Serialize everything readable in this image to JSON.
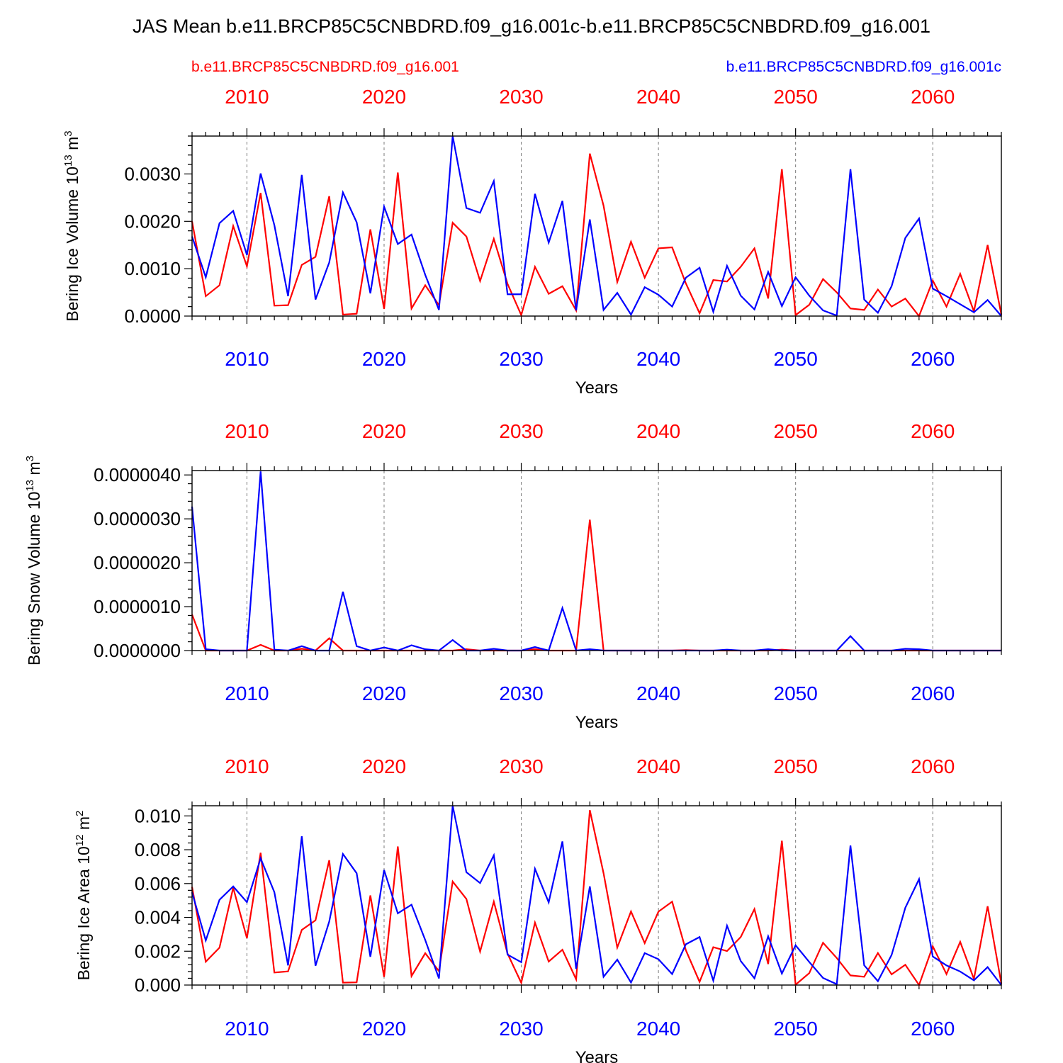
{
  "figure_title": "JAS Mean b.e11.BRCP85C5CNBDRD.f09_g16.001c-b.e11.BRCP85C5CNBDRD.f09_g16.001",
  "legend": {
    "red_label": "b.e11.BRCP85C5CNBDRD.f09_g16.001",
    "blue_label": "b.e11.BRCP85C5CNBDRD.f09_g16.001c"
  },
  "colors": {
    "red": "#ff0000",
    "blue": "#0000ff"
  },
  "chart_data": [
    {
      "type": "line",
      "ylabel": "Bering Ice Volume 10",
      "ylabel_exp": "13",
      "ylabel_unit": "m",
      "ylabel_unit_exp": "3",
      "xlabel": "Years",
      "xlim": [
        2006,
        2065
      ],
      "ylim": [
        0.0,
        0.0038
      ],
      "yticks": [
        "0.0000",
        "0.0010",
        "0.0020",
        "0.0030"
      ],
      "ytick_values": [
        0.0,
        0.001,
        0.002,
        0.003
      ],
      "xticks_top": [
        "2010",
        "2020",
        "2030",
        "2040",
        "2050",
        "2060"
      ],
      "xticks_bottom": [
        "2010",
        "2020",
        "2030",
        "2040",
        "2050",
        "2060"
      ],
      "xtick_values": [
        2010,
        2020,
        2030,
        2040,
        2050,
        2060
      ],
      "grid": "dashed vertical at decades",
      "series": [
        {
          "name": "b.e11.BRCP85C5CNBDRD.f09_g16.001",
          "color": "red",
          "values": [
            0.002,
            0.00042,
            0.00065,
            0.0019,
            0.00105,
            0.0026,
            0.00022,
            0.00023,
            0.00108,
            0.00125,
            0.00253,
            3e-05,
            5e-05,
            0.00183,
            0.00015,
            0.00303,
            0.00016,
            0.00065,
            0.00023,
            0.00197,
            0.00168,
            0.00074,
            0.00163,
            0.00068,
            2e-05,
            0.00104,
            0.00047,
            0.00063,
            0.00012,
            0.00343,
            0.00233,
            0.00072,
            0.00157,
            0.00081,
            0.00143,
            0.00145,
            0.00069,
            6e-05,
            0.00076,
            0.00073,
            0.00104,
            0.00143,
            0.00037,
            0.0031,
            2e-05,
            0.00024,
            0.00078,
            0.0005,
            0.00016,
            0.00013,
            0.00056,
            0.0002,
            0.00037,
            0.0,
            0.00075,
            0.0002,
            0.00089,
            0.0001,
            0.0015,
            3e-05
          ]
        },
        {
          "name": "b.e11.BRCP85C5CNBDRD.f09_g16.001c",
          "color": "blue",
          "values": [
            0.00168,
            0.00082,
            0.00196,
            0.00222,
            0.00129,
            0.00301,
            0.00192,
            0.00042,
            0.00298,
            0.00035,
            0.00113,
            0.00261,
            0.00198,
            0.00048,
            0.00231,
            0.00152,
            0.00172,
            0.00087,
            0.00013,
            0.0038,
            0.00228,
            0.00218,
            0.00285,
            0.00046,
            0.00046,
            0.00258,
            0.00155,
            0.00243,
            0.00012,
            0.00204,
            0.00013,
            0.00049,
            3e-05,
            0.00061,
            0.00045,
            0.0002,
            0.00081,
            0.00102,
            9e-05,
            0.00106,
            0.00043,
            0.00014,
            0.00093,
            0.00021,
            0.00082,
            0.00043,
            0.00012,
            1e-05,
            0.0031,
            0.00035,
            7e-05,
            0.00063,
            0.00165,
            0.00206,
            0.00058,
            0.00042,
            0.00025,
            8e-05,
            0.00034,
            0.0
          ]
        }
      ]
    },
    {
      "type": "line",
      "ylabel": "Bering Snow Volume 10",
      "ylabel_exp": "13",
      "ylabel_unit": "m",
      "ylabel_unit_exp": "3",
      "xlabel": "Years",
      "xlim": [
        2006,
        2065
      ],
      "ylim": [
        0.0,
        4.1e-06
      ],
      "yticks": [
        "0.0000000",
        "0.0000010",
        "0.0000020",
        "0.0000030",
        "0.0000040"
      ],
      "ytick_values": [
        0.0,
        1e-06,
        2e-06,
        3e-06,
        4e-06
      ],
      "xticks_top": [
        "2010",
        "2020",
        "2030",
        "2040",
        "2050",
        "2060"
      ],
      "xticks_bottom": [
        "2010",
        "2020",
        "2030",
        "2040",
        "2050",
        "2060"
      ],
      "xtick_values": [
        2010,
        2020,
        2030,
        2040,
        2050,
        2060
      ],
      "grid": "dashed vertical at decades",
      "series": [
        {
          "name": "b.e11.BRCP85C5CNBDRD.f09_g16.001",
          "color": "red",
          "values": [
            8.2e-07,
            0.0,
            0.0,
            0.0,
            0.0,
            1.3e-07,
            0.0,
            0.0,
            4e-08,
            0.0,
            2.8e-07,
            0.0,
            0.0,
            0.0,
            0.0,
            0.0,
            0.0,
            0.0,
            0.0,
            0.0,
            3e-08,
            0.0,
            0.0,
            0.0,
            0.0,
            3e-08,
            0.0,
            0.0,
            0.0,
            2.98e-06,
            0.0,
            0.0,
            0.0,
            0.0,
            0.0,
            0.0,
            1e-08,
            0.0,
            0.0,
            0.0,
            0.0,
            0.0,
            0.0,
            2e-08,
            0.0,
            0.0,
            0.0,
            0.0,
            0.0,
            0.0,
            0.0,
            0.0,
            0.0,
            0.0,
            0.0,
            0.0,
            0.0,
            0.0,
            0.0,
            0.0
          ]
        },
        {
          "name": "b.e11.BRCP85C5CNBDRD.f09_g16.001c",
          "color": "blue",
          "values": [
            3.28e-06,
            3e-08,
            0.0,
            0.0,
            0.0,
            4.08e-06,
            2e-08,
            0.0,
            1e-07,
            0.0,
            0.0,
            1.34e-06,
            1e-07,
            0.0,
            7e-08,
            0.0,
            1.2e-07,
            3e-08,
            0.0,
            2.4e-07,
            0.0,
            0.0,
            4e-08,
            0.0,
            0.0,
            8e-08,
            0.0,
            9.7e-07,
            0.0,
            3e-08,
            0.0,
            0.0,
            0.0,
            0.0,
            0.0,
            0.0,
            0.0,
            0.0,
            0.0,
            2e-08,
            0.0,
            0.0,
            3e-08,
            0.0,
            0.0,
            0.0,
            0.0,
            0.0,
            3.3e-07,
            0.0,
            0.0,
            0.0,
            4e-08,
            3e-08,
            0.0,
            0.0,
            0.0,
            0.0,
            0.0,
            0.0
          ]
        }
      ]
    },
    {
      "type": "line",
      "ylabel": "Bering Ice Area 10",
      "ylabel_exp": "12",
      "ylabel_unit": "m",
      "ylabel_unit_exp": "2",
      "xlabel": "Years",
      "xlim": [
        2006,
        2065
      ],
      "ylim": [
        0.0,
        0.0106
      ],
      "yticks": [
        "0.000",
        "0.002",
        "0.004",
        "0.006",
        "0.008",
        "0.010"
      ],
      "ytick_values": [
        0.0,
        0.002,
        0.004,
        0.006,
        0.008,
        0.01
      ],
      "xticks_top": [
        "2010",
        "2020",
        "2030",
        "2040",
        "2050",
        "2060"
      ],
      "xticks_bottom": [
        "2010",
        "2020",
        "2030",
        "2040",
        "2050",
        "2060"
      ],
      "xtick_values": [
        2010,
        2020,
        2030,
        2040,
        2050,
        2060
      ],
      "grid": "dashed vertical at decades",
      "series": [
        {
          "name": "b.e11.BRCP85C5CNBDRD.f09_g16.001",
          "color": "red",
          "values": [
            0.0058,
            0.00138,
            0.00221,
            0.00575,
            0.00277,
            0.00782,
            0.00074,
            0.00081,
            0.00326,
            0.00383,
            0.00738,
            0.00014,
            0.00016,
            0.0053,
            0.00048,
            0.00819,
            0.00053,
            0.00188,
            0.00082,
            0.00612,
            0.00509,
            0.00198,
            0.00493,
            0.00186,
            0.00013,
            0.00369,
            0.00139,
            0.00209,
            0.00034,
            0.01034,
            0.00661,
            0.00222,
            0.00435,
            0.00248,
            0.00434,
            0.00493,
            0.00206,
            0.00019,
            0.00224,
            0.00201,
            0.00284,
            0.00449,
            0.00124,
            0.00853,
            2e-05,
            0.00071,
            0.0025,
            0.0016,
            0.00057,
            0.00049,
            0.00189,
            0.00063,
            0.0012,
            0.0,
            0.00229,
            0.00065,
            0.00255,
            0.00036,
            0.00466,
            8e-05
          ]
        },
        {
          "name": "b.e11.BRCP85C5CNBDRD.f09_g16.001c",
          "color": "blue",
          "values": [
            0.00548,
            0.00264,
            0.00504,
            0.00583,
            0.0049,
            0.00749,
            0.00549,
            0.00116,
            0.0088,
            0.00114,
            0.00375,
            0.00775,
            0.00661,
            0.00167,
            0.0068,
            0.00424,
            0.00475,
            0.00266,
            0.00039,
            0.0106,
            0.00667,
            0.00603,
            0.00767,
            0.0018,
            0.00135,
            0.00687,
            0.00489,
            0.00849,
            0.00096,
            0.00583,
            0.00049,
            0.0015,
            0.00015,
            0.00189,
            0.00153,
            0.00065,
            0.00241,
            0.00284,
            0.00026,
            0.00351,
            0.00142,
            0.0004,
            0.00288,
            0.00068,
            0.00235,
            0.00136,
            0.00042,
            5e-05,
            0.00825,
            0.00117,
            0.00023,
            0.00178,
            0.00457,
            0.00626,
            0.00169,
            0.00116,
            0.0008,
            0.00028,
            0.00106,
            0.0
          ]
        }
      ]
    }
  ]
}
